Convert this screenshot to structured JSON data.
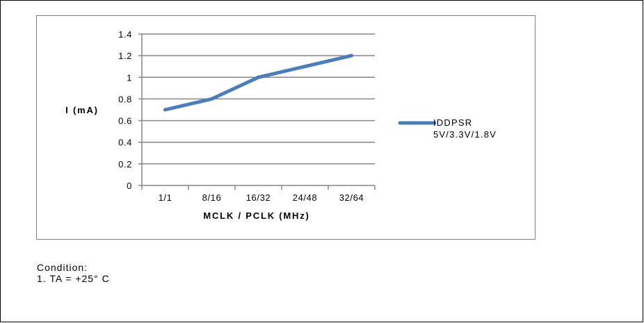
{
  "chart_data": {
    "type": "line",
    "categories": [
      "1/1",
      "8/16",
      "16/32",
      "24/48",
      "32/64"
    ],
    "series": [
      {
        "name": "IDDPSR",
        "name_line2": "5V/3.3V/1.8V",
        "values": [
          0.7,
          0.8,
          1.0,
          1.1,
          1.2
        ],
        "color": "#4a7ebb"
      }
    ],
    "xlabel": "MCLK / PCLK (MHz)",
    "ylabel": "I (mA)",
    "ylim": [
      0,
      1.4
    ],
    "yticks": [
      0,
      0.2,
      0.4,
      0.6,
      0.8,
      1,
      1.2,
      1.4
    ],
    "ytick_labels": [
      "0",
      "0.2",
      "0.4",
      "0.6",
      "0.8",
      "1",
      "1.2",
      "1.4"
    ],
    "grid": true,
    "legend_position": "right",
    "gridline_color": "#868686"
  },
  "notes": {
    "heading": "Condition:",
    "items": [
      "1. TA = +25° C"
    ]
  }
}
